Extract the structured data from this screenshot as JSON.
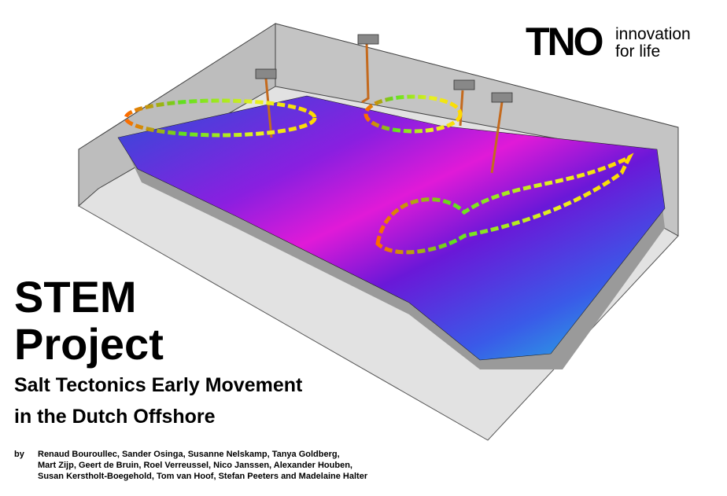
{
  "header": {
    "logo": "TNO",
    "tagline": [
      "innovation",
      "for life"
    ]
  },
  "title": [
    "STEM",
    "Project"
  ],
  "subtitle": [
    "Salt Tectonics Early Movement",
    "in the Dutch Offshore"
  ],
  "authors": {
    "prefix": "by",
    "lines": [
      "Renaud Bouroullec, Sander Osinga, Susanne Nelskamp, Tanya Goldberg,",
      "Mart Zijp, Geert de Bruin, Roel Verreussel, Nico Janssen, Alexander Houben,",
      "Susan Kerstholt-Boegehold, Tom van Hoof, Stefan Peeters and Madelaine Halter"
    ]
  }
}
